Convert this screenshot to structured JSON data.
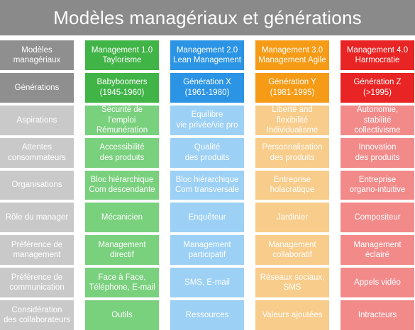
{
  "title": "Modèles managériaux et générations",
  "row_headers": [
    "Modèles\nmanagériaux",
    "Générations",
    "Aspirations",
    "Attentes\nconsommateurs",
    "Organisations",
    "Rôle du manager",
    "Préférence de\nmanagement",
    "Préférence de\ncommunication",
    "Considération\ndes collaborateurs"
  ],
  "columns": [
    {
      "color": "#41b447",
      "cells": [
        "Management 1.0\nTaylorisme",
        "Babyboomers\n(1945-1960)",
        "Sécurité de l'emploi\nRémunération",
        "Accessibilité\ndes produits",
        "Bloc hiérarchique\nCom descendante",
        "Mécanicien",
        "Management\ndirectif",
        "Face à Face,\nTéléphone, E-mail",
        "Outils"
      ]
    },
    {
      "color": "#2b94e4",
      "cells": [
        "Management 2.0\nLean Management",
        "Génération X\n(1961-1980)",
        "Equilibre\nvie privée/vie pro",
        "Qualité\ndes produits",
        "Bloc hiérarchique\nCom transversale",
        "Enquêteur",
        "Management\nparticipatif",
        "SMS, E-mail",
        "Ressources"
      ]
    },
    {
      "color": "#f59b16",
      "cells": [
        "Management 3.0\nManagement Agile",
        "Génération Y\n(1981-1995)",
        "Liberté and flexibilité\nIndividualisme",
        "Personnalisation\ndes produits",
        "Entreprise\nholacratique",
        "Jardinier",
        "Management\ncollaboratif",
        "Réseaux sociaux,\nSMS",
        "Valeurs ajoutées"
      ]
    },
    {
      "color": "#e82424",
      "cells": [
        "Management 4.0\nHarmocratie",
        "Génération Z\n(>1995)",
        "Autonomie, stabilité\ncollectivisme",
        "Innovation\ndes produits",
        "Entreprise\norgano-intuitive",
        "Compositeur",
        "Management\néclairé",
        "Appels vidéo",
        "Intracteurs"
      ]
    }
  ]
}
